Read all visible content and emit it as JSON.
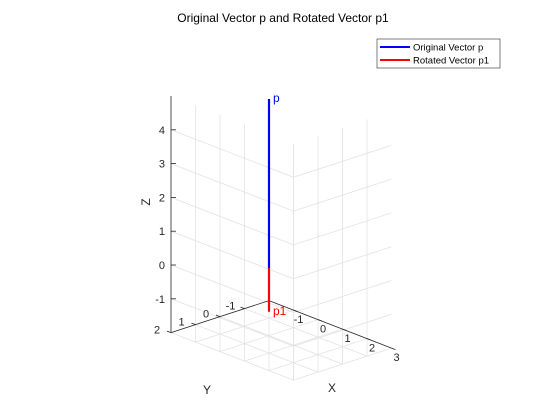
{
  "chart_data": {
    "type": "line3d",
    "title": "Original Vector p and Rotated Vector p1",
    "xlabel": "X",
    "ylabel": "Y",
    "zlabel": "Z",
    "xlim": [
      -2,
      3
    ],
    "ylim": [
      -2,
      2
    ],
    "zlim": [
      -2,
      5
    ],
    "xticks": [
      -1,
      0,
      1,
      2,
      3
    ],
    "yticks": [
      -1,
      0,
      1,
      2
    ],
    "zticks": [
      -1,
      0,
      1,
      2,
      3,
      4
    ],
    "grid": true,
    "legend_position": "top-right",
    "series": [
      {
        "name": "Original Vector p",
        "color": "#0000ff",
        "start": [
          0,
          0,
          0
        ],
        "end": [
          0,
          0,
          5
        ],
        "label": "p"
      },
      {
        "name": "Rotated Vector p1",
        "color": "#ff0000",
        "start": [
          0,
          0,
          0
        ],
        "end": [
          2.5,
          2.5,
          0
        ],
        "label": "p1"
      }
    ]
  }
}
